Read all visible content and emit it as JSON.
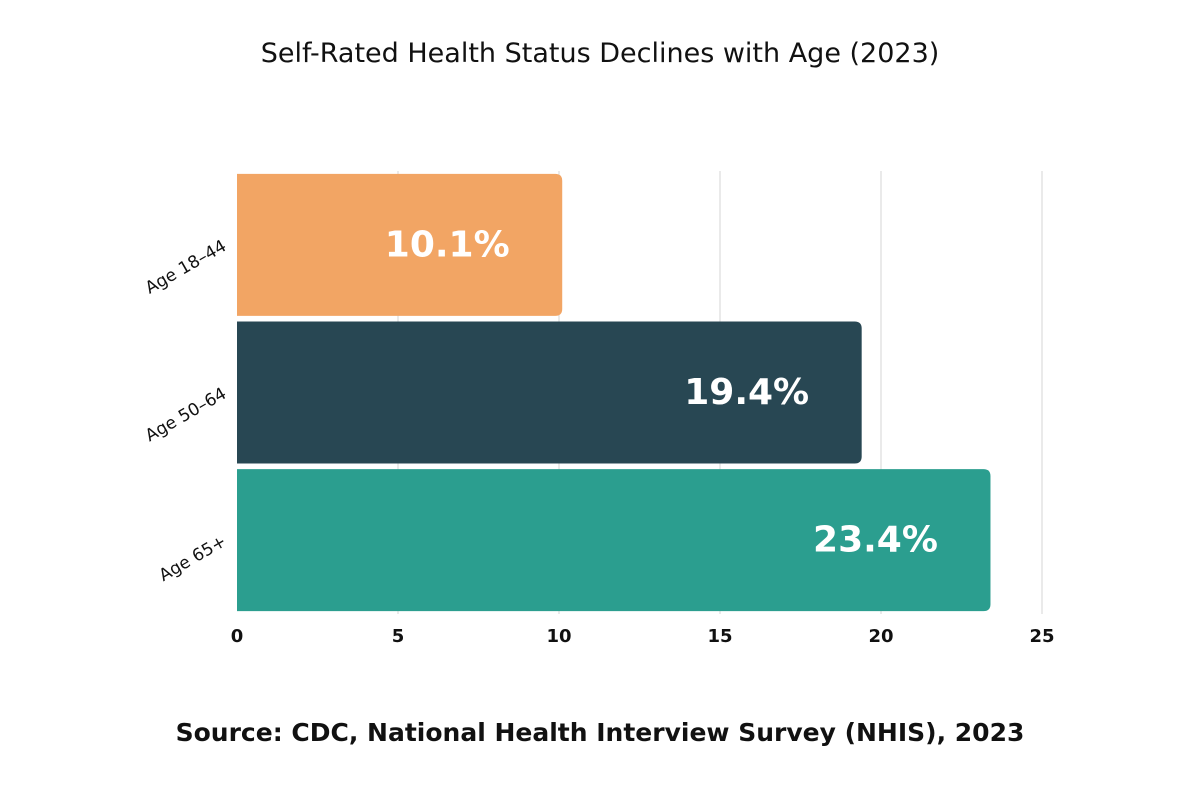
{
  "title": "Self-Rated Health Status Declines with Age (2023)",
  "source": "Source: CDC, National Health Interview Survey (NHIS), 2023",
  "chart_data": {
    "type": "bar",
    "orientation": "horizontal",
    "title": "Self-Rated Health Status Declines with Age (2023)",
    "categories": [
      "Age 18–44",
      "Age 50–64",
      "Age 65+"
    ],
    "values": [
      10.1,
      19.4,
      23.4
    ],
    "data_labels": [
      "10.1%",
      "19.4%",
      "23.4%"
    ],
    "colors": [
      "#F2A564",
      "#284753",
      "#2B9E8F"
    ],
    "xlim": [
      0,
      25
    ],
    "xticks": [
      0,
      5,
      10,
      15,
      20,
      25
    ],
    "xlabel": "",
    "ylabel": "",
    "grid": "vertical",
    "legend": "none",
    "source": "Source: CDC, National Health Interview Survey (NHIS), 2023"
  }
}
